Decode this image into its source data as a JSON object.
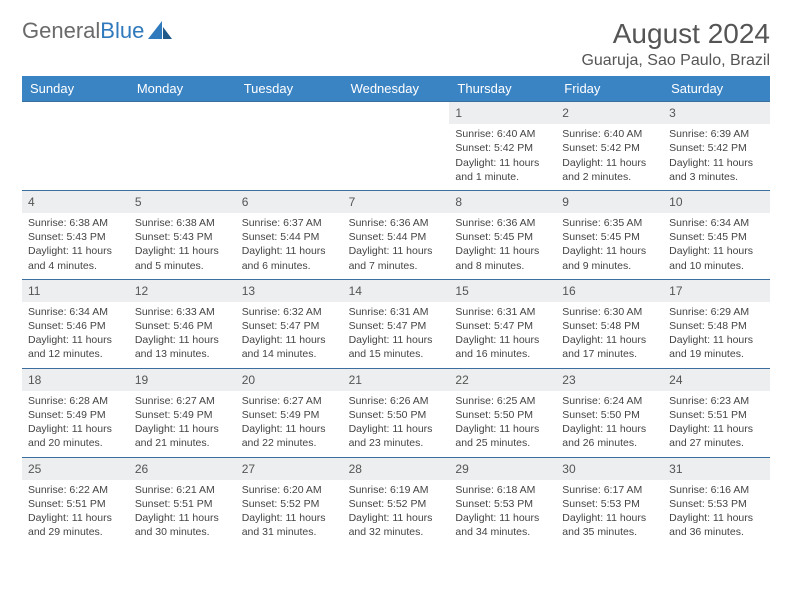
{
  "logo": {
    "text1": "General",
    "text2": "Blue"
  },
  "title": "August 2024",
  "location": "Guaruja, Sao Paulo, Brazil",
  "colors": {
    "header_bg": "#3b84c4",
    "header_text": "#ffffff",
    "daynum_bg": "#eceeef",
    "border": "#3b6fa0",
    "logo_gray": "#6a6a6a",
    "logo_blue": "#2f79bd"
  },
  "daysOfWeek": [
    "Sunday",
    "Monday",
    "Tuesday",
    "Wednesday",
    "Thursday",
    "Friday",
    "Saturday"
  ],
  "startOffset": 4,
  "days": [
    {
      "n": 1,
      "sr": "6:40 AM",
      "ss": "5:42 PM",
      "dl": "11 hours and 1 minute."
    },
    {
      "n": 2,
      "sr": "6:40 AM",
      "ss": "5:42 PM",
      "dl": "11 hours and 2 minutes."
    },
    {
      "n": 3,
      "sr": "6:39 AM",
      "ss": "5:42 PM",
      "dl": "11 hours and 3 minutes."
    },
    {
      "n": 4,
      "sr": "6:38 AM",
      "ss": "5:43 PM",
      "dl": "11 hours and 4 minutes."
    },
    {
      "n": 5,
      "sr": "6:38 AM",
      "ss": "5:43 PM",
      "dl": "11 hours and 5 minutes."
    },
    {
      "n": 6,
      "sr": "6:37 AM",
      "ss": "5:44 PM",
      "dl": "11 hours and 6 minutes."
    },
    {
      "n": 7,
      "sr": "6:36 AM",
      "ss": "5:44 PM",
      "dl": "11 hours and 7 minutes."
    },
    {
      "n": 8,
      "sr": "6:36 AM",
      "ss": "5:45 PM",
      "dl": "11 hours and 8 minutes."
    },
    {
      "n": 9,
      "sr": "6:35 AM",
      "ss": "5:45 PM",
      "dl": "11 hours and 9 minutes."
    },
    {
      "n": 10,
      "sr": "6:34 AM",
      "ss": "5:45 PM",
      "dl": "11 hours and 10 minutes."
    },
    {
      "n": 11,
      "sr": "6:34 AM",
      "ss": "5:46 PM",
      "dl": "11 hours and 12 minutes."
    },
    {
      "n": 12,
      "sr": "6:33 AM",
      "ss": "5:46 PM",
      "dl": "11 hours and 13 minutes."
    },
    {
      "n": 13,
      "sr": "6:32 AM",
      "ss": "5:47 PM",
      "dl": "11 hours and 14 minutes."
    },
    {
      "n": 14,
      "sr": "6:31 AM",
      "ss": "5:47 PM",
      "dl": "11 hours and 15 minutes."
    },
    {
      "n": 15,
      "sr": "6:31 AM",
      "ss": "5:47 PM",
      "dl": "11 hours and 16 minutes."
    },
    {
      "n": 16,
      "sr": "6:30 AM",
      "ss": "5:48 PM",
      "dl": "11 hours and 17 minutes."
    },
    {
      "n": 17,
      "sr": "6:29 AM",
      "ss": "5:48 PM",
      "dl": "11 hours and 19 minutes."
    },
    {
      "n": 18,
      "sr": "6:28 AM",
      "ss": "5:49 PM",
      "dl": "11 hours and 20 minutes."
    },
    {
      "n": 19,
      "sr": "6:27 AM",
      "ss": "5:49 PM",
      "dl": "11 hours and 21 minutes."
    },
    {
      "n": 20,
      "sr": "6:27 AM",
      "ss": "5:49 PM",
      "dl": "11 hours and 22 minutes."
    },
    {
      "n": 21,
      "sr": "6:26 AM",
      "ss": "5:50 PM",
      "dl": "11 hours and 23 minutes."
    },
    {
      "n": 22,
      "sr": "6:25 AM",
      "ss": "5:50 PM",
      "dl": "11 hours and 25 minutes."
    },
    {
      "n": 23,
      "sr": "6:24 AM",
      "ss": "5:50 PM",
      "dl": "11 hours and 26 minutes."
    },
    {
      "n": 24,
      "sr": "6:23 AM",
      "ss": "5:51 PM",
      "dl": "11 hours and 27 minutes."
    },
    {
      "n": 25,
      "sr": "6:22 AM",
      "ss": "5:51 PM",
      "dl": "11 hours and 29 minutes."
    },
    {
      "n": 26,
      "sr": "6:21 AM",
      "ss": "5:51 PM",
      "dl": "11 hours and 30 minutes."
    },
    {
      "n": 27,
      "sr": "6:20 AM",
      "ss": "5:52 PM",
      "dl": "11 hours and 31 minutes."
    },
    {
      "n": 28,
      "sr": "6:19 AM",
      "ss": "5:52 PM",
      "dl": "11 hours and 32 minutes."
    },
    {
      "n": 29,
      "sr": "6:18 AM",
      "ss": "5:53 PM",
      "dl": "11 hours and 34 minutes."
    },
    {
      "n": 30,
      "sr": "6:17 AM",
      "ss": "5:53 PM",
      "dl": "11 hours and 35 minutes."
    },
    {
      "n": 31,
      "sr": "6:16 AM",
      "ss": "5:53 PM",
      "dl": "11 hours and 36 minutes."
    }
  ],
  "labels": {
    "sunrise": "Sunrise:",
    "sunset": "Sunset:",
    "daylight": "Daylight:"
  }
}
